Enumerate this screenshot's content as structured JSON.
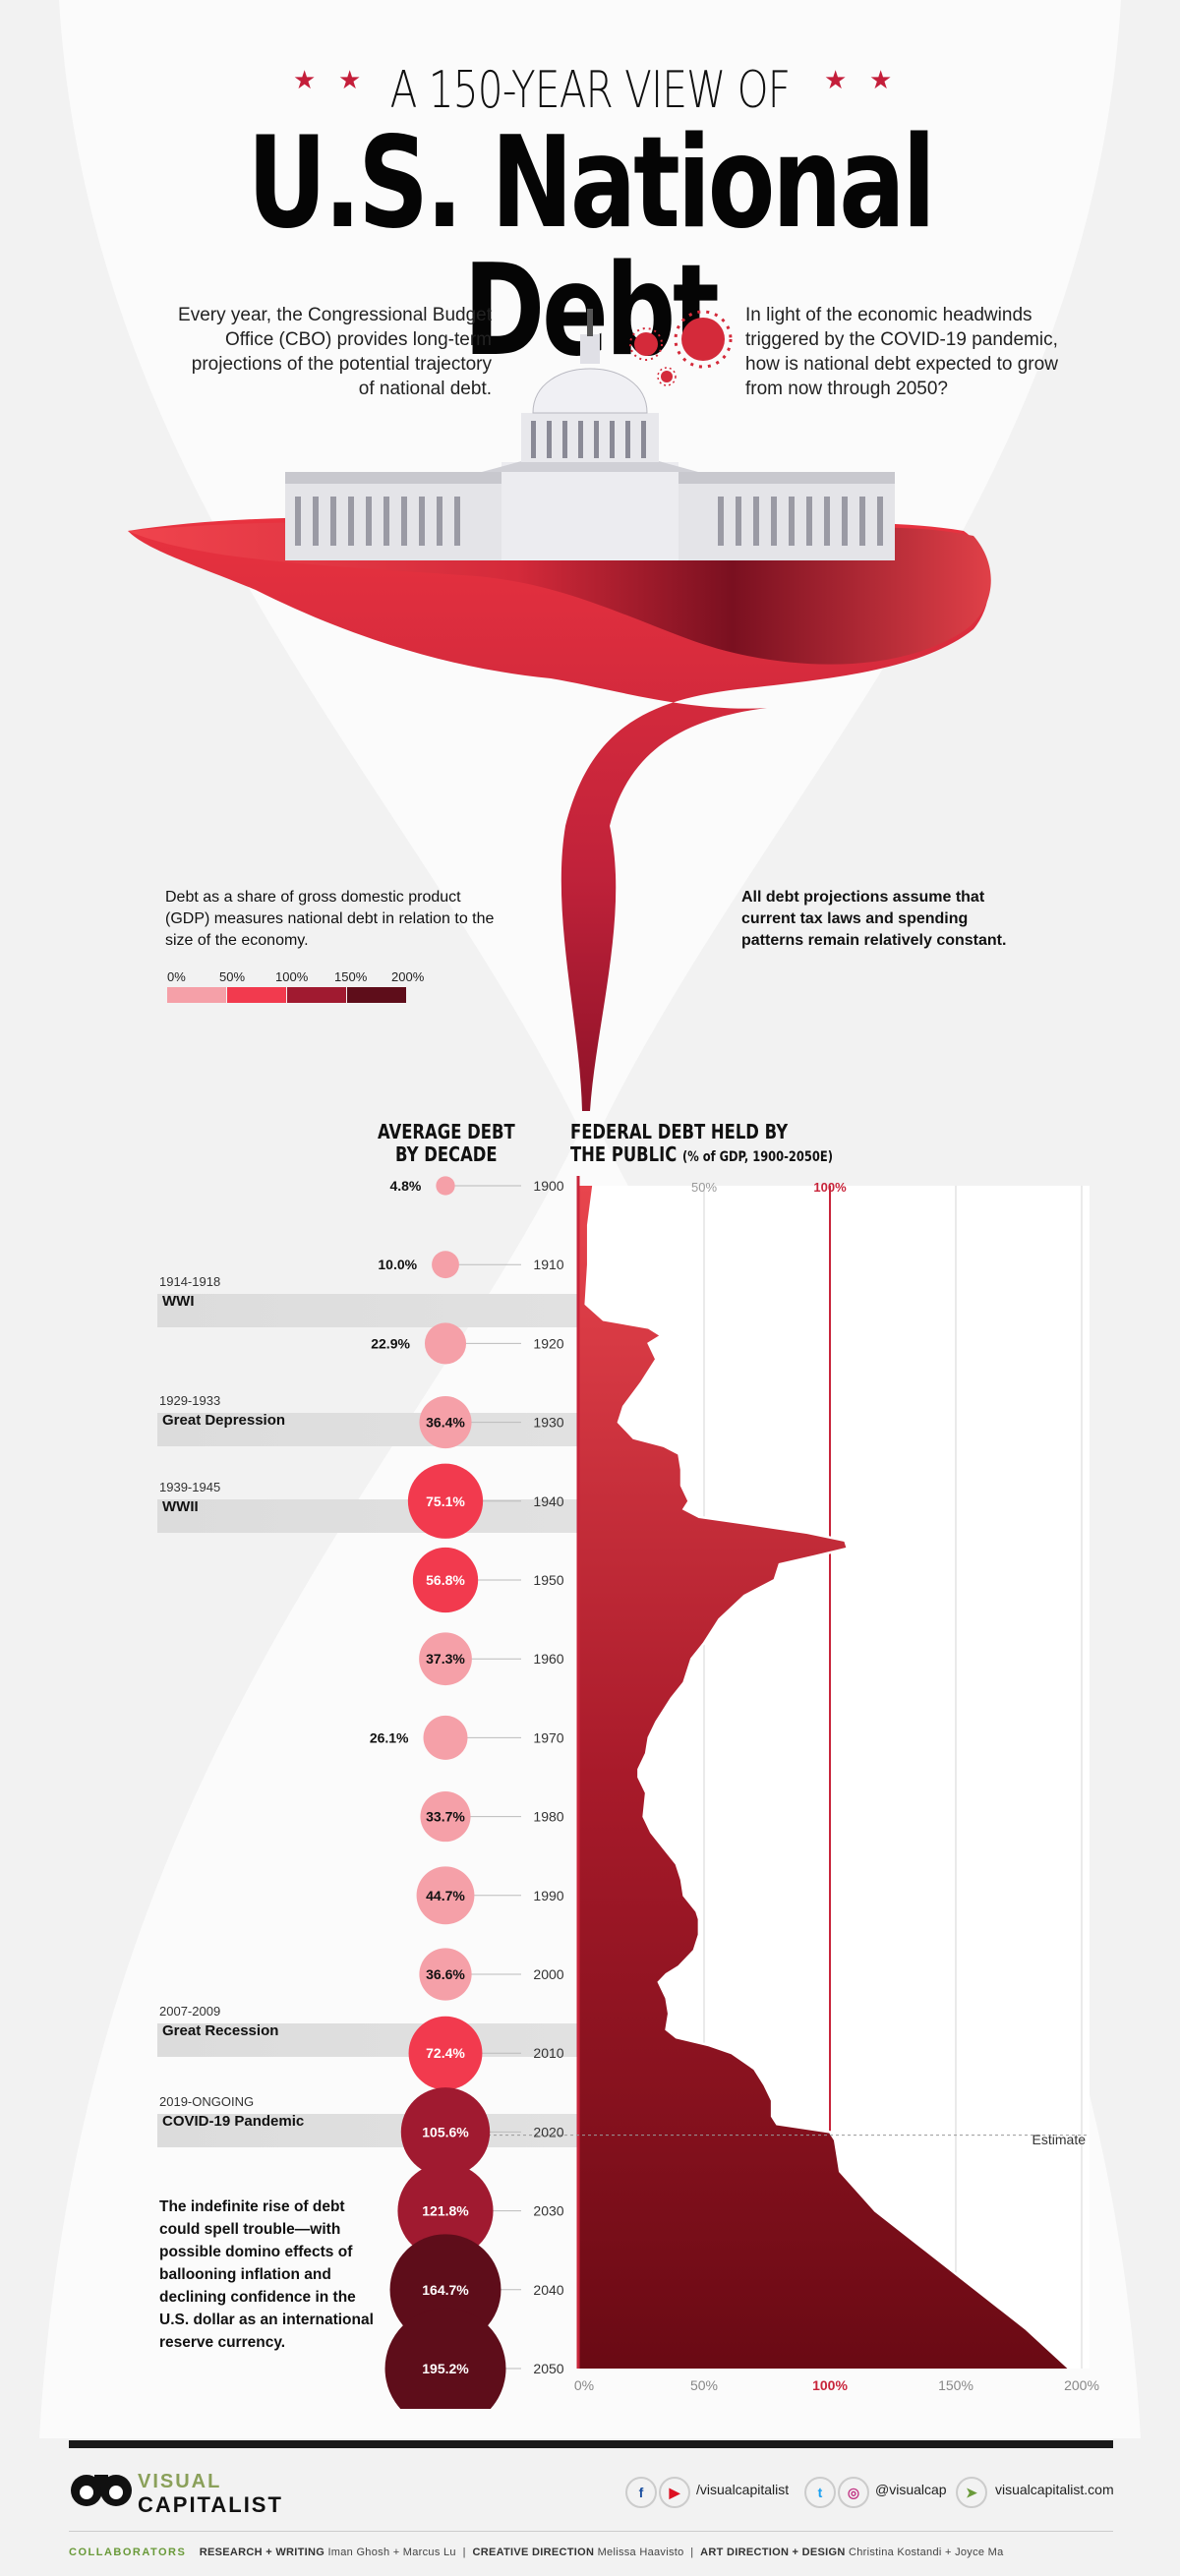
{
  "header": {
    "kicker": "A 150-YEAR VIEW OF",
    "title": "U.S. National Debt"
  },
  "intro": {
    "left": "Every year, the Congressional Budget Office (CBO) provides long-term projections of the potential trajectory of national debt.",
    "right": "In light of the economic headwinds triggered by the COVID-19 pandemic, how is national debt expected to grow from now through 2050?"
  },
  "notes": {
    "gdp_note": "Debt as a share of gross domestic product (GDP) measures national debt in relation to the size of the economy.",
    "assumption_note": "All debt projections assume that current tax laws and spending patterns remain relatively constant.",
    "closing_note": "The indefinite rise of debt could spell trouble—with possible domino effects of ballooning inflation and declining confidence in the U.S. dollar as an international reserve currency."
  },
  "legend": {
    "labels": [
      "0%",
      "50%",
      "100%",
      "150%",
      "200%"
    ],
    "colors": [
      "#f5a0a8",
      "#f23a4e",
      "#a01a30",
      "#5e0d1a"
    ]
  },
  "chart_headers": {
    "left_line1": "AVERAGE DEBT",
    "left_line2": "BY DECADE",
    "right_line1": "FEDERAL DEBT HELD BY",
    "right_line2": "THE PUBLIC",
    "right_suffix": "(% of GDP, 1900-2050E)",
    "estimate_label": "Estimate"
  },
  "events": [
    {
      "years": "1914-1918",
      "name": "WWI"
    },
    {
      "years": "1929-1933",
      "name": "Great Depression"
    },
    {
      "years": "1939-1945",
      "name": "WWII"
    },
    {
      "years": "2007-2009",
      "name": "Great Recession"
    },
    {
      "years": "2019-ONGOING",
      "name": "COVID-19 Pandemic"
    }
  ],
  "chart_data": {
    "type": "area",
    "title": "FEDERAL DEBT HELD BY THE PUBLIC",
    "subtitle": "(% of GDP, 1900-2050E)",
    "x_axis": "year (vertical, top to bottom)",
    "ylim": [
      0,
      200
    ],
    "tick_labels": [
      "0%",
      "50%",
      "100%",
      "150%",
      "200%"
    ],
    "decades": [
      "1900",
      "1910",
      "1920",
      "1930",
      "1940",
      "1950",
      "1960",
      "1970",
      "1980",
      "1990",
      "2000",
      "2010",
      "2020",
      "2030",
      "2040",
      "2050"
    ],
    "decade_average_labels": [
      "4.8%",
      "10.0%",
      "22.9%",
      "36.4%",
      "75.1%",
      "56.8%",
      "37.3%",
      "26.1%",
      "33.7%",
      "44.7%",
      "36.6%",
      "72.4%",
      "105.6%",
      "121.8%",
      "164.7%",
      "195.2%"
    ],
    "decade_average_values": [
      4.8,
      10.0,
      22.9,
      36.4,
      75.1,
      56.8,
      37.3,
      26.1,
      33.7,
      44.7,
      36.6,
      72.4,
      105.6,
      121.8,
      164.7,
      195.2
    ],
    "series": [
      {
        "years": [
          1900,
          1905,
          1910,
          1915,
          1917,
          1918,
          1919,
          1920,
          1922,
          1925,
          1928,
          1930,
          1932,
          1933,
          1934,
          1936,
          1938,
          1940,
          1941,
          1942,
          1943,
          1944,
          1945,
          1946,
          1947,
          1948,
          1950,
          1952,
          1955,
          1958,
          1960,
          1963,
          1965,
          1968,
          1970,
          1972,
          1974,
          1975,
          1977,
          1980,
          1982,
          1984,
          1986,
          1988,
          1990,
          1992,
          1993,
          1995,
          1997,
          1999,
          2000,
          2001,
          2003,
          2005,
          2007,
          2008,
          2009,
          2010,
          2012,
          2014,
          2016,
          2018,
          2019,
          2020,
          2021,
          2023,
          2025,
          2030,
          2035,
          2040,
          2045,
          2050
        ],
        "values": [
          6,
          4,
          4,
          3,
          10,
          28,
          33,
          28,
          31,
          25,
          18,
          16,
          22,
          34,
          40,
          41,
          41,
          44,
          42,
          48,
          70,
          91,
          106,
          107,
          94,
          80,
          78,
          66,
          56,
          50,
          45,
          42,
          37,
          31,
          28,
          27,
          24,
          24,
          27,
          26,
          29,
          34,
          39,
          41,
          42,
          47,
          48,
          48,
          46,
          40,
          35,
          32,
          35,
          36,
          35,
          39,
          52,
          61,
          70,
          74,
          77,
          77,
          79,
          100,
          102,
          103,
          104,
          118,
          138,
          158,
          178,
          195
        ]
      }
    ]
  },
  "footer": {
    "logo_line1": "VISUAL",
    "logo_line2": "CAPITALIST",
    "handle1": "/visualcapitalist",
    "handle2": "@visualcap",
    "site": "visualcapitalist.com",
    "collab_label": "COLLABORATORS",
    "research_label": "RESEARCH + WRITING",
    "research": "Iman Ghosh + Marcus Lu",
    "creative_label": "CREATIVE DIRECTION",
    "creative": "Melissa Haavisto",
    "art_label": "ART DIRECTION + DESIGN",
    "art": "Christina Kostandi + Joyce Ma"
  }
}
